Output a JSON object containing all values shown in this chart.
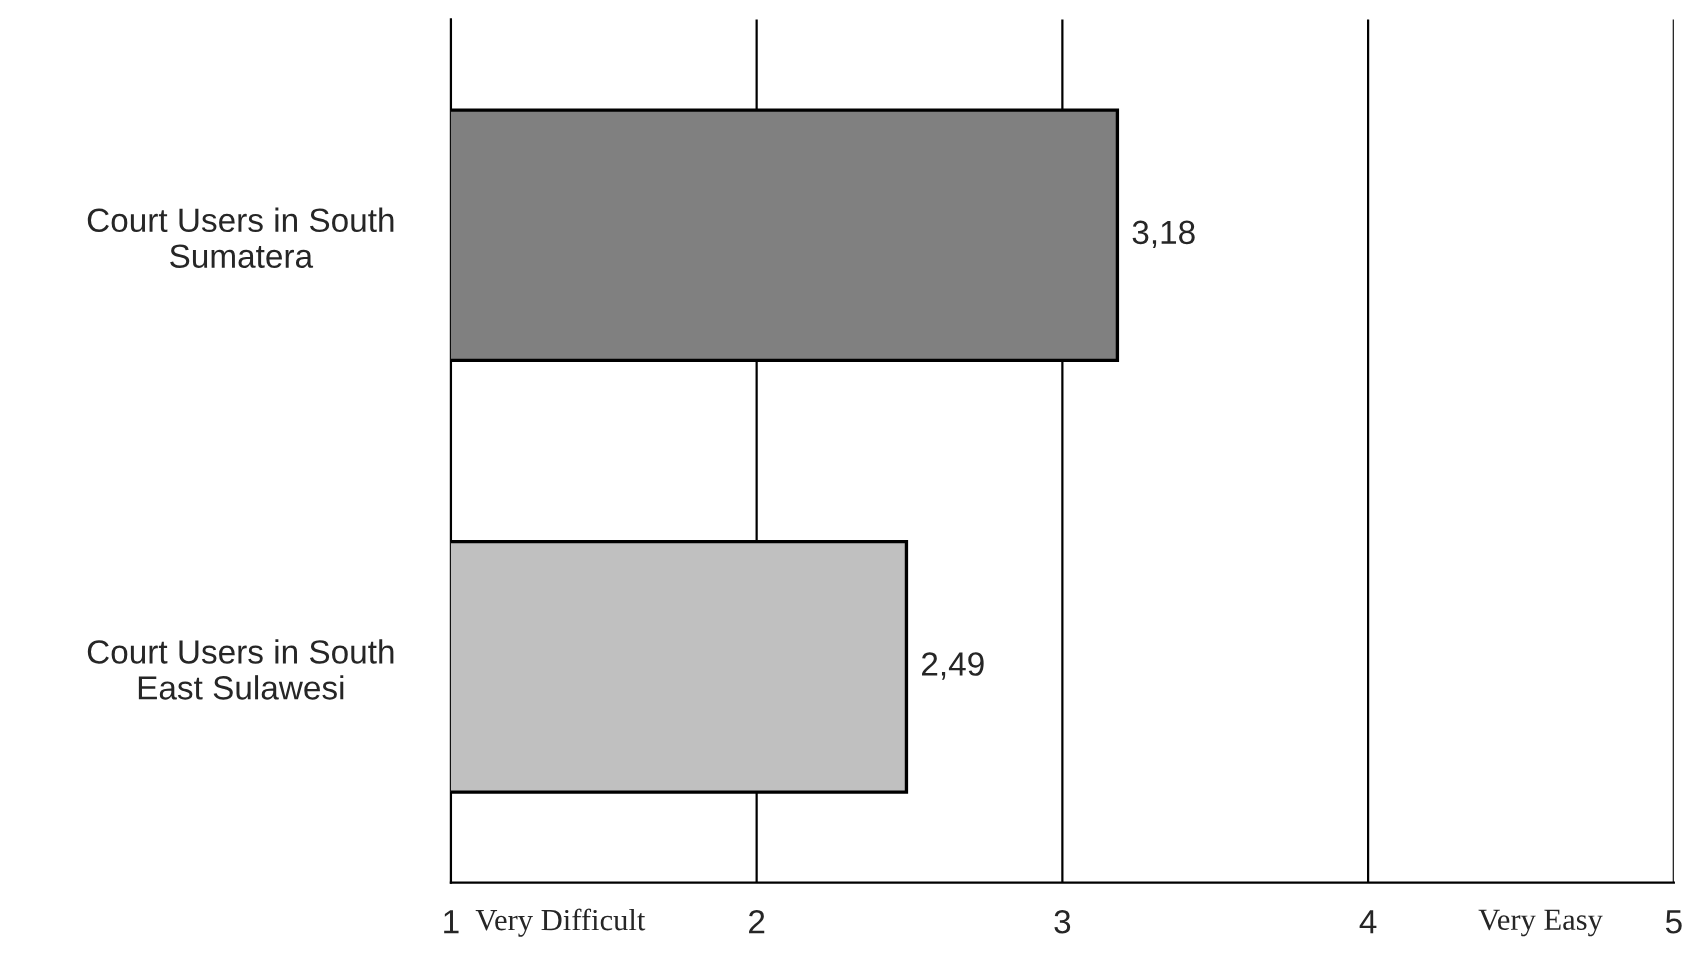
{
  "chart_data": {
    "type": "bar",
    "orientation": "horizontal",
    "categories": [
      "Court Users in South\nSumatera",
      "Court Users in South\nEast Sulawesi"
    ],
    "values": [
      3.18,
      2.49
    ],
    "colors": [
      "#808080",
      "#c0c0c0"
    ],
    "value_labels": [
      "3,18",
      "2,49"
    ],
    "xlim": [
      1,
      5
    ],
    "xticks": [
      1,
      2,
      3,
      4,
      5
    ],
    "grid": "x",
    "annotations": [
      "Very Difficult",
      "Very Easy"
    ]
  }
}
